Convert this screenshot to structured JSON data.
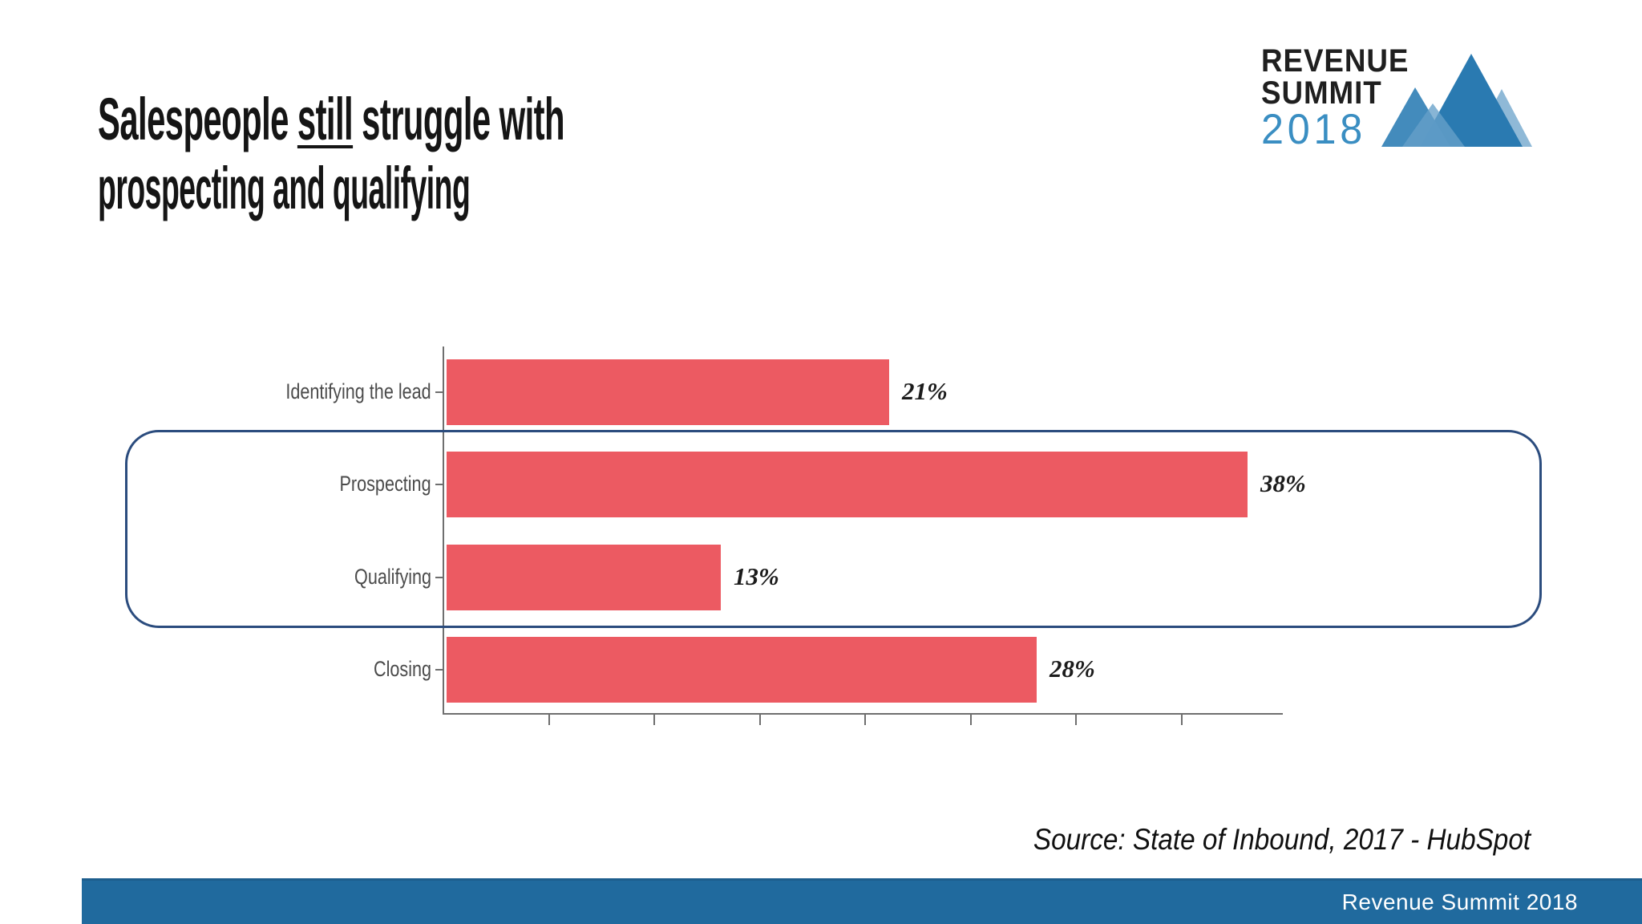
{
  "slide": {
    "title": {
      "line1_pre": "Salespeople ",
      "line1_underlined": "still",
      "line1_post": " struggle with",
      "line2": "prospecting and qualifying"
    },
    "logo": {
      "line1": "REVENUE",
      "line2": "SUMMIT",
      "year": "2018",
      "year_color": "#3a8ec2",
      "mountains_icon": "mountain-peaks",
      "mountain_colors": [
        "#8fb9d7",
        "#2a7ab1",
        "#3b86b9",
        "#67a0c9"
      ]
    },
    "source_text": "Source: State of Inbound, 2017 - HubSpot",
    "footer": {
      "label": "Revenue Summit 2018",
      "bg_color": "#206a9e"
    }
  },
  "chart_data": {
    "type": "bar",
    "orientation": "horizontal",
    "categories": [
      "Identifying the lead",
      "Prospecting",
      "Qualifying",
      "Closing"
    ],
    "values": [
      21,
      38,
      13,
      28
    ],
    "value_labels": [
      "21%",
      "38%",
      "13%",
      "28%"
    ],
    "title": "",
    "xlabel": "",
    "ylabel": "",
    "xlim": [
      0,
      40
    ],
    "x_tick_step": 5,
    "x_tick_labels_shown": false,
    "grid": false,
    "legend": "none",
    "bar_color": "#ec5a62",
    "annotation": {
      "type": "rounded-outline",
      "color": "#2b4c7e",
      "rows": [
        "Prospecting",
        "Qualifying"
      ],
      "meaning": "highlights prospecting and qualifying rows"
    }
  }
}
